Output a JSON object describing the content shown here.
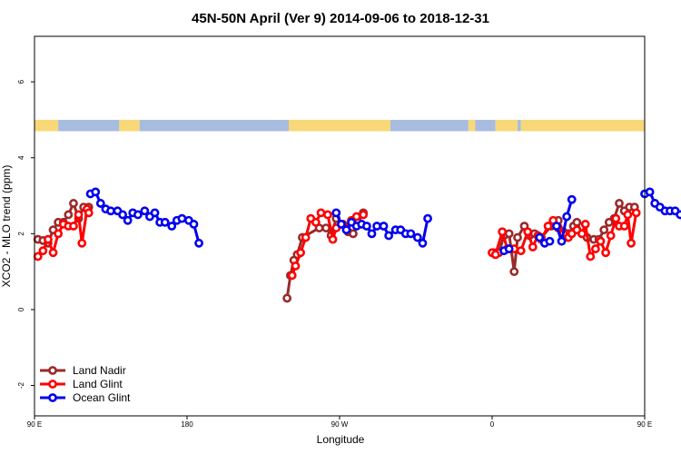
{
  "chart_data": {
    "type": "line",
    "title": "45N-50N April (Ver 9)   2014-09-06 to 2018-12-31",
    "xlabel": "Longitude",
    "ylabel": "XCO2 - MLO trend (ppm)",
    "xlim": [
      90,
      450
    ],
    "ylim": [
      -2.8,
      7.2
    ],
    "x_ticks": [
      {
        "value": 90,
        "label": "90 E"
      },
      {
        "value": 180,
        "label": "180"
      },
      {
        "value": 270,
        "label": "90 W"
      },
      {
        "value": 360,
        "label": "0"
      },
      {
        "value": 450,
        "label": "90 E"
      },
      {
        "value": 540,
        "label": "180"
      }
    ],
    "y_ticks": [
      {
        "value": -2,
        "label": "-2"
      },
      {
        "value": 0,
        "label": "0"
      },
      {
        "value": 2,
        "label": "2"
      },
      {
        "value": 4,
        "label": "4"
      },
      {
        "value": 6,
        "label": "6"
      }
    ],
    "surface_band": {
      "y_range": [
        4.7,
        5.0
      ],
      "land_color": "#f8d878",
      "ocean_color": "#a8bce0",
      "segments": [
        {
          "x0": 90,
          "x1": 104,
          "type": "land"
        },
        {
          "x0": 104,
          "x1": 140,
          "type": "ocean"
        },
        {
          "x0": 140,
          "x1": 152,
          "type": "land"
        },
        {
          "x0": 152,
          "x1": 240,
          "type": "ocean"
        },
        {
          "x0": 240,
          "x1": 300,
          "type": "land"
        },
        {
          "x0": 300,
          "x1": 346,
          "type": "ocean"
        },
        {
          "x0": 346,
          "x1": 350,
          "type": "land"
        },
        {
          "x0": 350,
          "x1": 362,
          "type": "ocean"
        },
        {
          "x0": 362,
          "x1": 375,
          "type": "land"
        },
        {
          "x0": 375,
          "x1": 377,
          "type": "ocean"
        },
        {
          "x0": 377,
          "x1": 508,
          "type": "land"
        },
        {
          "x0": 508,
          "x1": 540,
          "type": "ocean"
        }
      ]
    },
    "legend": {
      "position": "bottom-left",
      "entries": [
        {
          "label": "Land Nadir",
          "color": "#9a2a2a"
        },
        {
          "label": "Land Glint",
          "color": "#ff0000"
        },
        {
          "label": "Ocean Glint",
          "color": "#0000ee"
        }
      ]
    },
    "series": [
      {
        "name": "Land Nadir",
        "color": "#9a2a2a",
        "segments": [
          [
            [
              92,
              1.85
            ],
            [
              95,
              1.82
            ],
            [
              98,
              1.75
            ],
            [
              101,
              2.1
            ],
            [
              104,
              2.3
            ],
            [
              107,
              2.3
            ],
            [
              110,
              2.5
            ],
            [
              113,
              2.8
            ],
            [
              116,
              2.4
            ],
            [
              119,
              2.7
            ],
            [
              122,
              2.7
            ]
          ],
          [
            [
              239,
              0.3
            ],
            [
              241,
              0.9
            ],
            [
              243,
              1.3
            ],
            [
              245,
              1.45
            ],
            [
              248,
              1.9
            ],
            [
              258,
              2.15
            ],
            [
              262,
              2.15
            ],
            [
              265,
              1.95
            ],
            [
              268,
              2.4
            ],
            [
              272,
              2.25
            ],
            [
              275,
              2.05
            ],
            [
              278,
              2.0
            ],
            [
              281,
              2.3
            ],
            [
              284,
              2.55
            ]
          ],
          [
            [
              361,
              1.5
            ],
            [
              364,
              1.5
            ],
            [
              367,
              1.95
            ],
            [
              370,
              2.0
            ],
            [
              373,
              1.0
            ],
            [
              375,
              1.9
            ],
            [
              379,
              2.2
            ],
            [
              382,
              1.95
            ],
            [
              385,
              2.0
            ],
            [
              389,
              1.9
            ],
            [
              395,
              2.2
            ],
            [
              399,
              2.35
            ],
            [
              402,
              2.05
            ],
            [
              405,
              2.0
            ],
            [
              408,
              2.2
            ],
            [
              410,
              2.3
            ],
            [
              413,
              2.0
            ],
            [
              416,
              1.9
            ],
            [
              420,
              1.85
            ],
            [
              423,
              1.85
            ],
            [
              426,
              2.1
            ],
            [
              429,
              2.3
            ],
            [
              432,
              2.4
            ],
            [
              435,
              2.8
            ],
            [
              438,
              2.6
            ],
            [
              441,
              2.7
            ],
            [
              444,
              2.7
            ]
          ]
        ]
      },
      {
        "name": "Land Glint",
        "color": "#ff0000",
        "segments": [
          [
            [
              92,
              1.4
            ],
            [
              95,
              1.55
            ],
            [
              98,
              1.85
            ],
            [
              101,
              1.5
            ],
            [
              104,
              2.0
            ],
            [
              107,
              2.25
            ],
            [
              110,
              2.2
            ],
            [
              113,
              2.2
            ],
            [
              116,
              2.5
            ],
            [
              118,
              1.75
            ],
            [
              121,
              2.65
            ],
            [
              122,
              2.55
            ]
          ],
          [
            [
              242,
              0.9
            ],
            [
              244,
              1.15
            ],
            [
              247,
              1.5
            ],
            [
              250,
              1.9
            ],
            [
              253,
              2.4
            ],
            [
              256,
              2.3
            ],
            [
              259,
              2.55
            ],
            [
              263,
              2.5
            ],
            [
              266,
              1.85
            ],
            [
              268,
              2.15
            ],
            [
              271,
              2.25
            ],
            [
              274,
              2.15
            ],
            [
              277,
              2.35
            ],
            [
              280,
              2.45
            ],
            [
              284,
              2.5
            ]
          ],
          [
            [
              360,
              1.5
            ],
            [
              362,
              1.45
            ],
            [
              366,
              2.05
            ],
            [
              369,
              1.6
            ],
            [
              373,
              1.6
            ],
            [
              377,
              1.55
            ],
            [
              381,
              2.05
            ],
            [
              384,
              1.65
            ],
            [
              387,
              1.95
            ],
            [
              389,
              1.85
            ],
            [
              393,
              2.2
            ],
            [
              396,
              2.35
            ],
            [
              399,
              2.15
            ],
            [
              402,
              2.0
            ],
            [
              405,
              1.9
            ],
            [
              407,
              2.0
            ],
            [
              410,
              2.1
            ],
            [
              413,
              2.0
            ],
            [
              415,
              2.25
            ],
            [
              418,
              1.4
            ],
            [
              421,
              1.6
            ],
            [
              424,
              1.8
            ],
            [
              427,
              1.5
            ],
            [
              430,
              1.95
            ],
            [
              433,
              2.4
            ],
            [
              435,
              2.2
            ],
            [
              438,
              2.2
            ],
            [
              440,
              2.5
            ],
            [
              442,
              1.75
            ],
            [
              445,
              2.55
            ]
          ]
        ]
      },
      {
        "name": "Ocean Glint",
        "color": "#0000ee",
        "segments": [
          [
            [
              123,
              3.05
            ],
            [
              126,
              3.1
            ],
            [
              129,
              2.8
            ],
            [
              132,
              2.65
            ],
            [
              135,
              2.6
            ],
            [
              139,
              2.6
            ],
            [
              142,
              2.5
            ],
            [
              145,
              2.35
            ],
            [
              148,
              2.55
            ],
            [
              151,
              2.5
            ],
            [
              155,
              2.6
            ],
            [
              158,
              2.45
            ],
            [
              161,
              2.55
            ],
            [
              164,
              2.3
            ],
            [
              167,
              2.3
            ],
            [
              171,
              2.2
            ],
            [
              174,
              2.35
            ],
            [
              177,
              2.4
            ],
            [
              181,
              2.35
            ],
            [
              184,
              2.25
            ],
            [
              187,
              1.75
            ]
          ],
          [
            [
              268,
              2.55
            ],
            [
              271,
              2.25
            ],
            [
              274,
              2.1
            ],
            [
              277,
              2.3
            ],
            [
              280,
              2.2
            ],
            [
              283,
              2.25
            ],
            [
              286,
              2.2
            ],
            [
              289,
              2.0
            ],
            [
              292,
              2.2
            ],
            [
              296,
              2.2
            ],
            [
              299,
              1.95
            ],
            [
              303,
              2.1
            ],
            [
              306,
              2.1
            ],
            [
              309,
              2.0
            ],
            [
              312,
              2.0
            ],
            [
              316,
              1.9
            ],
            [
              319,
              1.75
            ],
            [
              322,
              2.4
            ]
          ],
          [
            [
              367,
              1.55
            ],
            [
              370,
              1.6
            ]
          ],
          [
            [
              388,
              1.9
            ],
            [
              391,
              1.75
            ],
            [
              394,
              1.8
            ]
          ],
          [
            [
              398,
              2.2
            ],
            [
              401,
              1.8
            ],
            [
              404,
              2.45
            ],
            [
              407,
              2.9
            ]
          ],
          [
            [
              450,
              3.05
            ],
            [
              453,
              3.1
            ],
            [
              456,
              2.8
            ],
            [
              459,
              2.7
            ],
            [
              462,
              2.6
            ],
            [
              465,
              2.6
            ],
            [
              468,
              2.6
            ],
            [
              471,
              2.5
            ],
            [
              474,
              2.35
            ],
            [
              477,
              2.55
            ]
          ]
        ]
      }
    ]
  }
}
